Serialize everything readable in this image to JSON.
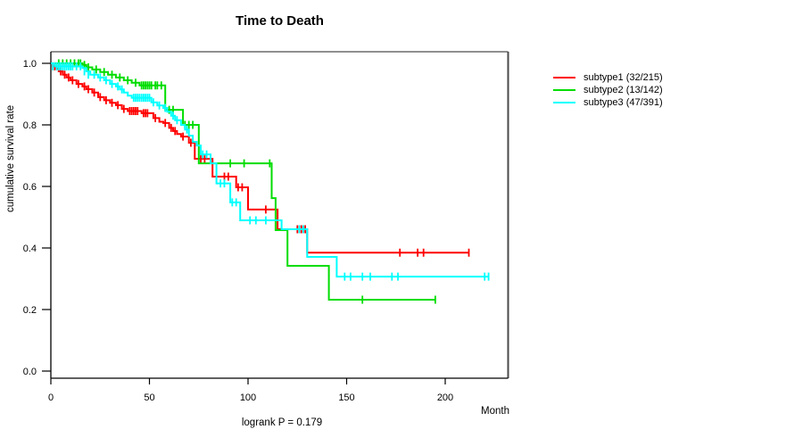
{
  "chart_data": {
    "type": "line",
    "variant": "kaplan-meier-step",
    "title": "Time to Death",
    "xlabel": "Month",
    "ylabel": "cumulative survival rate",
    "footnote": "logrank P = 0.179",
    "x_ticks": [
      0,
      50,
      100,
      150,
      200
    ],
    "y_ticks": [
      0.0,
      0.2,
      0.4,
      0.6,
      0.8,
      1.0
    ],
    "xlim": [
      0,
      232
    ],
    "ylim": [
      0.0,
      1.0
    ],
    "grid": false,
    "legend_position": "right-outside",
    "series": [
      {
        "name": "subtype1",
        "label": "subtype1 (32/215)",
        "color": "#ff0000",
        "end_time": 212,
        "steps": [
          [
            0,
            1.0
          ],
          [
            1,
            0.99
          ],
          [
            3,
            0.983
          ],
          [
            4,
            0.974
          ],
          [
            6,
            0.963
          ],
          [
            8,
            0.954
          ],
          [
            10,
            0.945
          ],
          [
            13,
            0.933
          ],
          [
            16,
            0.925
          ],
          [
            18,
            0.916
          ],
          [
            21,
            0.905
          ],
          [
            24,
            0.89
          ],
          [
            27,
            0.88
          ],
          [
            30,
            0.872
          ],
          [
            33,
            0.864
          ],
          [
            36,
            0.852
          ],
          [
            39,
            0.845
          ],
          [
            46,
            0.838
          ],
          [
            52,
            0.822
          ],
          [
            55,
            0.81
          ],
          [
            57,
            0.806
          ],
          [
            60,
            0.79
          ],
          [
            62,
            0.78
          ],
          [
            64,
            0.77
          ],
          [
            66,
            0.762
          ],
          [
            70,
            0.742
          ],
          [
            73,
            0.69
          ],
          [
            82,
            0.632
          ],
          [
            94,
            0.597
          ],
          [
            100,
            0.525
          ],
          [
            115,
            0.461
          ],
          [
            130,
            0.385
          ]
        ],
        "censor_ticks": [
          [
            2,
            0.99
          ],
          [
            5,
            0.974
          ],
          [
            7,
            0.963
          ],
          [
            9,
            0.954
          ],
          [
            11,
            0.945
          ],
          [
            14,
            0.933
          ],
          [
            17,
            0.925
          ],
          [
            19,
            0.916
          ],
          [
            22,
            0.905
          ],
          [
            25,
            0.89
          ],
          [
            28,
            0.88
          ],
          [
            31,
            0.872
          ],
          [
            34,
            0.864
          ],
          [
            37,
            0.852
          ],
          [
            40,
            0.845
          ],
          [
            41,
            0.845
          ],
          [
            42,
            0.845
          ],
          [
            43,
            0.845
          ],
          [
            44,
            0.845
          ],
          [
            47,
            0.838
          ],
          [
            48,
            0.838
          ],
          [
            49,
            0.838
          ],
          [
            53,
            0.822
          ],
          [
            58,
            0.806
          ],
          [
            61,
            0.79
          ],
          [
            63,
            0.78
          ],
          [
            67,
            0.762
          ],
          [
            71,
            0.742
          ],
          [
            76,
            0.69
          ],
          [
            78,
            0.69
          ],
          [
            88,
            0.632
          ],
          [
            90,
            0.632
          ],
          [
            95,
            0.597
          ],
          [
            97,
            0.597
          ],
          [
            109,
            0.525
          ],
          [
            125,
            0.461
          ],
          [
            127,
            0.461
          ],
          [
            129,
            0.461
          ],
          [
            177,
            0.385
          ],
          [
            186,
            0.385
          ],
          [
            189,
            0.385
          ],
          [
            212,
            0.385
          ]
        ]
      },
      {
        "name": "subtype2",
        "label": "subtype2 (13/142)",
        "color": "#00dd00",
        "end_time": 195,
        "steps": [
          [
            0,
            1.0
          ],
          [
            16,
            0.995
          ],
          [
            18,
            0.987
          ],
          [
            21,
            0.98
          ],
          [
            25,
            0.972
          ],
          [
            29,
            0.963
          ],
          [
            33,
            0.954
          ],
          [
            37,
            0.945
          ],
          [
            41,
            0.937
          ],
          [
            45,
            0.928
          ],
          [
            58,
            0.849
          ],
          [
            67,
            0.8
          ],
          [
            75,
            0.675
          ],
          [
            112,
            0.562
          ],
          [
            114,
            0.458
          ],
          [
            120,
            0.342
          ],
          [
            141,
            0.232
          ]
        ],
        "censor_ticks": [
          [
            4,
            1.0
          ],
          [
            6,
            1.0
          ],
          [
            8,
            1.0
          ],
          [
            10,
            1.0
          ],
          [
            12,
            1.0
          ],
          [
            14,
            1.0
          ],
          [
            15,
            1.0
          ],
          [
            17,
            0.995
          ],
          [
            19,
            0.987
          ],
          [
            23,
            0.98
          ],
          [
            27,
            0.972
          ],
          [
            31,
            0.963
          ],
          [
            35,
            0.954
          ],
          [
            39,
            0.945
          ],
          [
            43,
            0.937
          ],
          [
            46,
            0.928
          ],
          [
            47,
            0.928
          ],
          [
            48,
            0.928
          ],
          [
            49,
            0.928
          ],
          [
            50,
            0.928
          ],
          [
            51,
            0.928
          ],
          [
            53,
            0.928
          ],
          [
            54,
            0.928
          ],
          [
            56,
            0.928
          ],
          [
            60,
            0.849
          ],
          [
            62,
            0.849
          ],
          [
            68,
            0.8
          ],
          [
            70,
            0.8
          ],
          [
            72,
            0.8
          ],
          [
            91,
            0.675
          ],
          [
            98,
            0.675
          ],
          [
            111,
            0.675
          ],
          [
            158,
            0.232
          ],
          [
            195,
            0.232
          ]
        ]
      },
      {
        "name": "subtype3",
        "label": "subtype3 (47/391)",
        "color": "#00ffff",
        "end_time": 222,
        "steps": [
          [
            0,
            1.0
          ],
          [
            2,
            0.99
          ],
          [
            16,
            0.985
          ],
          [
            18,
            0.974
          ],
          [
            20,
            0.963
          ],
          [
            24,
            0.954
          ],
          [
            27,
            0.945
          ],
          [
            30,
            0.933
          ],
          [
            33,
            0.925
          ],
          [
            35,
            0.915
          ],
          [
            37,
            0.905
          ],
          [
            39,
            0.895
          ],
          [
            41,
            0.888
          ],
          [
            51,
            0.873
          ],
          [
            54,
            0.863
          ],
          [
            57,
            0.855
          ],
          [
            59,
            0.843
          ],
          [
            61,
            0.83
          ],
          [
            63,
            0.815
          ],
          [
            66,
            0.8
          ],
          [
            68,
            0.785
          ],
          [
            70,
            0.765
          ],
          [
            72,
            0.745
          ],
          [
            74,
            0.733
          ],
          [
            76,
            0.704
          ],
          [
            81,
            0.675
          ],
          [
            84,
            0.61
          ],
          [
            91,
            0.548
          ],
          [
            96,
            0.49
          ],
          [
            117,
            0.461
          ],
          [
            130,
            0.371
          ],
          [
            145,
            0.307
          ]
        ],
        "censor_ticks": [
          [
            1,
            0.99
          ],
          [
            3,
            0.99
          ],
          [
            4,
            0.99
          ],
          [
            5,
            0.99
          ],
          [
            6,
            0.99
          ],
          [
            7,
            0.99
          ],
          [
            8,
            0.99
          ],
          [
            9,
            0.99
          ],
          [
            10,
            0.99
          ],
          [
            11,
            0.99
          ],
          [
            13,
            0.99
          ],
          [
            15,
            0.99
          ],
          [
            17,
            0.974
          ],
          [
            19,
            0.963
          ],
          [
            22,
            0.963
          ],
          [
            25,
            0.954
          ],
          [
            28,
            0.945
          ],
          [
            31,
            0.933
          ],
          [
            34,
            0.925
          ],
          [
            36,
            0.915
          ],
          [
            42,
            0.888
          ],
          [
            43,
            0.888
          ],
          [
            44,
            0.888
          ],
          [
            45,
            0.888
          ],
          [
            46,
            0.888
          ],
          [
            47,
            0.888
          ],
          [
            48,
            0.888
          ],
          [
            49,
            0.888
          ],
          [
            50,
            0.888
          ],
          [
            52,
            0.873
          ],
          [
            55,
            0.863
          ],
          [
            58,
            0.855
          ],
          [
            62,
            0.83
          ],
          [
            64,
            0.815
          ],
          [
            69,
            0.785
          ],
          [
            77,
            0.704
          ],
          [
            79,
            0.704
          ],
          [
            86,
            0.61
          ],
          [
            88,
            0.61
          ],
          [
            92,
            0.548
          ],
          [
            94,
            0.548
          ],
          [
            101,
            0.49
          ],
          [
            104,
            0.49
          ],
          [
            109,
            0.49
          ],
          [
            126,
            0.461
          ],
          [
            128,
            0.461
          ],
          [
            149,
            0.307
          ],
          [
            152,
            0.307
          ],
          [
            158,
            0.307
          ],
          [
            162,
            0.307
          ],
          [
            173,
            0.307
          ],
          [
            176,
            0.307
          ],
          [
            220,
            0.307
          ],
          [
            222,
            0.307
          ]
        ]
      }
    ],
    "colors": {
      "axis": "#000000",
      "box_top": "#909090",
      "box_right": "#4a4a4a",
      "background": "#ffffff"
    }
  }
}
